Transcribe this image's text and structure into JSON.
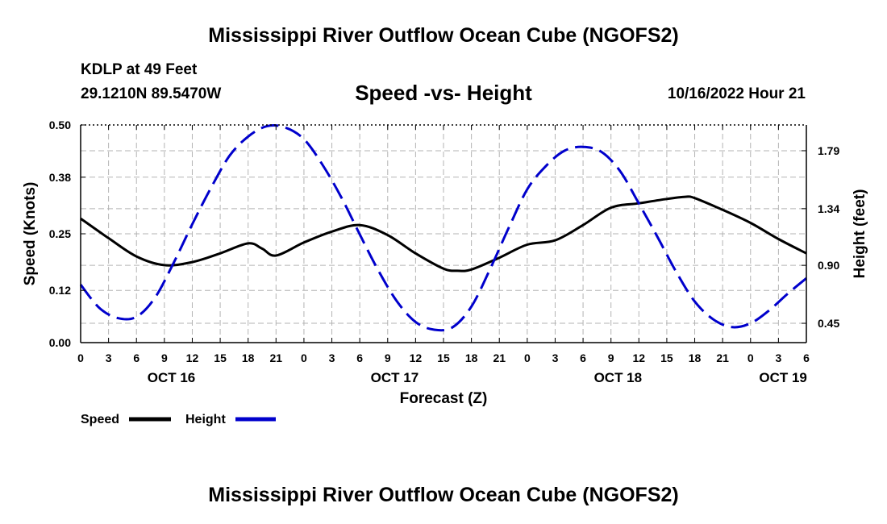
{
  "header": {
    "title": "Mississippi River Outflow Ocean Cube (NGOFS2)",
    "station": "KDLP at 49 Feet",
    "coordinates": "29.1210N  89.5470W",
    "subtitle": "Speed -vs- Height",
    "timestamp": "10/16/2022 Hour 21"
  },
  "footer": {
    "title": "Mississippi River Outflow Ocean Cube (NGOFS2)"
  },
  "chart_data": {
    "type": "line",
    "title": "Speed -vs- Height",
    "xlabel": "Forecast (Z)",
    "ylabel": "Speed (Knots)",
    "y2label": "Height (feet)",
    "xlim": [
      0,
      78
    ],
    "ylim": [
      0,
      0.5
    ],
    "y2lim": [
      0.3,
      1.99
    ],
    "grid": true,
    "x_tick_labels": [
      "0",
      "3",
      "6",
      "9",
      "12",
      "15",
      "18",
      "21",
      "0",
      "3",
      "6",
      "9",
      "12",
      "15",
      "18",
      "21",
      "0",
      "3",
      "6",
      "9",
      "12",
      "15",
      "18",
      "21",
      "0",
      "3",
      "6"
    ],
    "day_labels": [
      {
        "label": "OCT 16",
        "x": 9.75
      },
      {
        "label": "OCT 17",
        "x": 33.75
      },
      {
        "label": "OCT 18",
        "x": 57.75
      },
      {
        "label": "OCT 19",
        "x": 75.5
      }
    ],
    "y_ticks": [
      0.0,
      0.12,
      0.25,
      0.38,
      0.5
    ],
    "y_tick_labels": [
      "0.00",
      "0.12",
      "0.25",
      "0.38",
      "0.50"
    ],
    "y2_ticks": [
      0.45,
      0.9,
      1.34,
      1.79
    ],
    "y2_tick_labels": [
      "0.45",
      "0.90",
      "1.34",
      "1.79"
    ],
    "series": [
      {
        "name": "Speed",
        "axis": "left",
        "color": "#000000",
        "style": "solid",
        "x": [
          0,
          3,
          6,
          9,
          12,
          15,
          18,
          19.5,
          21,
          24,
          27,
          30,
          33,
          36,
          39,
          40.5,
          42,
          45,
          48,
          51,
          54,
          57,
          60,
          63,
          65,
          66,
          69,
          72,
          75,
          78
        ],
        "y": [
          0.285,
          0.24,
          0.198,
          0.178,
          0.185,
          0.205,
          0.228,
          0.216,
          0.2,
          0.23,
          0.255,
          0.27,
          0.247,
          0.205,
          0.17,
          0.165,
          0.168,
          0.195,
          0.225,
          0.235,
          0.27,
          0.31,
          0.32,
          0.33,
          0.335,
          0.332,
          0.305,
          0.275,
          0.238,
          0.205
        ]
      },
      {
        "name": "Height",
        "axis": "right",
        "color": "#0000cc",
        "style": "dashed",
        "x": [
          0,
          2,
          4,
          6,
          8,
          10,
          12,
          14,
          16,
          18,
          20,
          22,
          24,
          26,
          28,
          30,
          32,
          34,
          36,
          38,
          40,
          42,
          44,
          46,
          48,
          50,
          52,
          54,
          56,
          58,
          60,
          62,
          64,
          66,
          68,
          70,
          72,
          74,
          76,
          78
        ],
        "y": [
          0.75,
          0.57,
          0.49,
          0.5,
          0.65,
          0.92,
          1.22,
          1.5,
          1.75,
          1.9,
          1.98,
          1.97,
          1.88,
          1.68,
          1.43,
          1.14,
          0.86,
          0.62,
          0.46,
          0.4,
          0.42,
          0.58,
          0.87,
          1.19,
          1.49,
          1.67,
          1.79,
          1.82,
          1.78,
          1.63,
          1.38,
          1.12,
          0.85,
          0.62,
          0.48,
          0.42,
          0.45,
          0.55,
          0.68,
          0.8
        ]
      }
    ],
    "legend": {
      "placement": "bottom-left",
      "items": [
        "Speed",
        "Height"
      ]
    }
  }
}
